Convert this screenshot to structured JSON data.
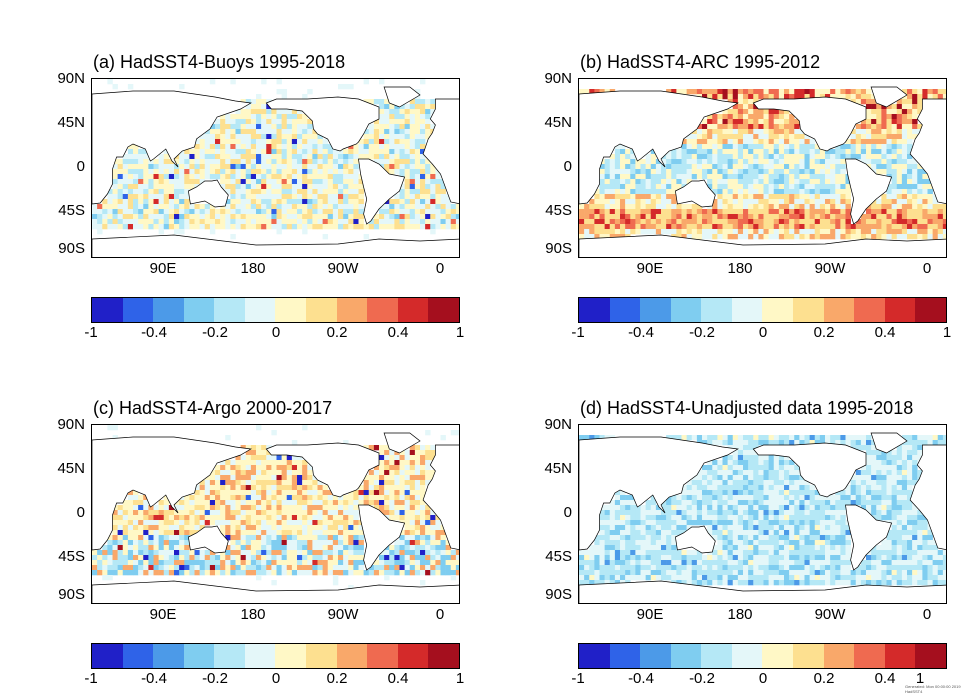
{
  "panels": [
    {
      "key": "a",
      "title": "(a) HadSST4-Buoys 1995-2018",
      "pattern": "buoys"
    },
    {
      "key": "b",
      "title": "(b) HadSST4-ARC 1995-2012",
      "pattern": "arc"
    },
    {
      "key": "c",
      "title": "(c) HadSST4-Argo 2000-2017",
      "pattern": "argo"
    },
    {
      "key": "d",
      "title": "(d) HadSST4-Unadjusted data 1995-2018",
      "pattern": "unadj"
    }
  ],
  "lat_labels": [
    "90N",
    "45N",
    "0",
    "45S",
    "90S"
  ],
  "lon_labels": [
    "90E",
    "180",
    "90W",
    "0"
  ],
  "colorbar": {
    "colors": [
      "#2020c8",
      "#2f63e8",
      "#4c9ae8",
      "#7fcdf0",
      "#b5e8f6",
      "#e4f7f9",
      "#fff8c6",
      "#fde090",
      "#f9a86a",
      "#ef6a50",
      "#d42a2a",
      "#a50f1e"
    ],
    "tick_labels": [
      "-1",
      "-0.4",
      "-0.2",
      "0",
      "0.2",
      "0.4",
      "1"
    ]
  },
  "footer_note": "Generated: Mon 00:00:00 2019 HadSST4"
}
